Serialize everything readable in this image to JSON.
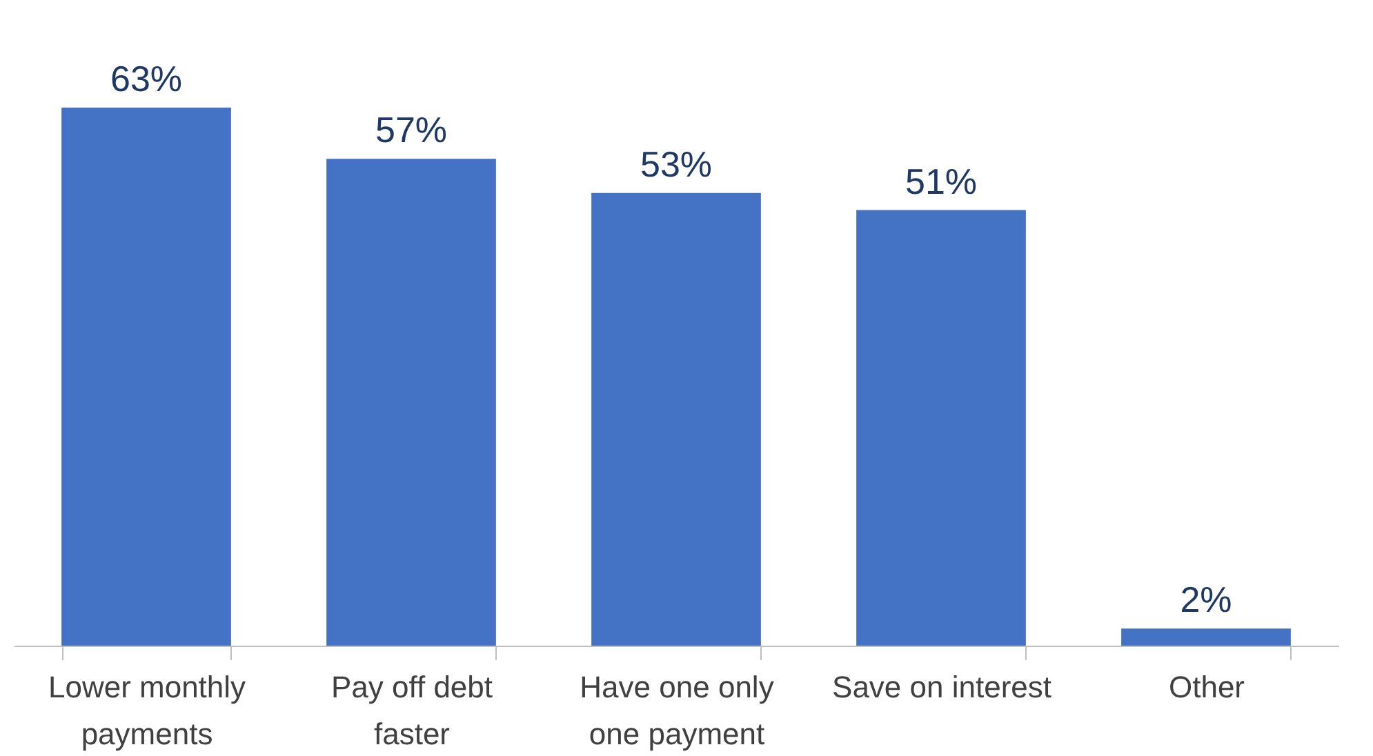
{
  "chart_data": {
    "type": "bar",
    "categories": [
      "Lower monthly payments",
      "Pay off debt faster",
      "Have one only one payment",
      "Save on interest",
      "Other"
    ],
    "values": [
      63,
      57,
      53,
      51,
      2
    ],
    "value_labels": [
      "63%",
      "57%",
      "53%",
      "51%",
      "2%"
    ],
    "color": "#4472c4",
    "grid": false
  }
}
